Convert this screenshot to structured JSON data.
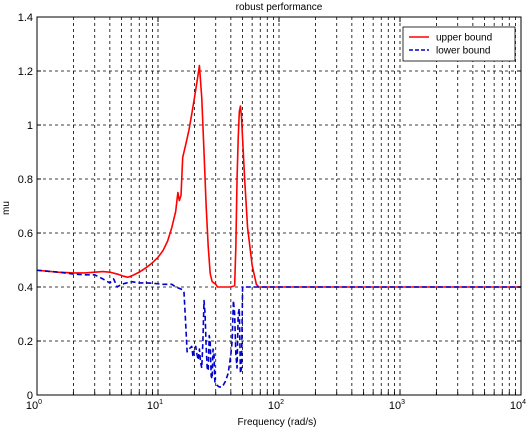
{
  "chart_data": {
    "type": "line",
    "title": "robust performance",
    "xlabel": "Frequency (rad/s)",
    "ylabel": "mu",
    "xscale": "log",
    "xlim": [
      1,
      10000
    ],
    "ylim": [
      0,
      1.4
    ],
    "grid": true,
    "legend_position": "top-right",
    "x_ticks": [
      {
        "base": "10",
        "exp": "0"
      },
      {
        "base": "10",
        "exp": "1"
      },
      {
        "base": "10",
        "exp": "2"
      },
      {
        "base": "10",
        "exp": "3"
      },
      {
        "base": "10",
        "exp": "4"
      }
    ],
    "y_ticks": [
      "0",
      "0.2",
      "0.4",
      "0.6",
      "0.8",
      "1",
      "1.2",
      "1.4"
    ],
    "series": [
      {
        "name": "upper bound",
        "color": "#ff0000",
        "style": "solid",
        "points": [
          [
            1.0,
            0.462
          ],
          [
            1.5,
            0.455
          ],
          [
            2.0,
            0.452
          ],
          [
            2.5,
            0.452
          ],
          [
            3.0,
            0.455
          ],
          [
            3.5,
            0.457
          ],
          [
            4.0,
            0.455
          ],
          [
            4.6,
            0.448
          ],
          [
            5.2,
            0.44
          ],
          [
            5.6,
            0.436
          ],
          [
            6.0,
            0.44
          ],
          [
            7.0,
            0.455
          ],
          [
            8.0,
            0.472
          ],
          [
            9.0,
            0.49
          ],
          [
            10.0,
            0.51
          ],
          [
            11.0,
            0.535
          ],
          [
            12.0,
            0.57
          ],
          [
            13.0,
            0.62
          ],
          [
            14.0,
            0.68
          ],
          [
            14.6,
            0.75
          ],
          [
            15.0,
            0.72
          ],
          [
            15.5,
            0.74
          ],
          [
            16.0,
            0.88
          ],
          [
            17.0,
            0.93
          ],
          [
            18.0,
            0.98
          ],
          [
            19.0,
            1.04
          ],
          [
            20.0,
            1.1
          ],
          [
            21.0,
            1.16
          ],
          [
            22.0,
            1.22
          ],
          [
            23.0,
            1.1
          ],
          [
            24.0,
            0.9
          ],
          [
            25.0,
            0.7
          ],
          [
            26.0,
            0.55
          ],
          [
            27.0,
            0.45
          ],
          [
            28.0,
            0.42
          ],
          [
            29.0,
            0.415
          ],
          [
            30.0,
            0.41
          ],
          [
            31.0,
            0.4
          ],
          [
            40.0,
            0.4
          ],
          [
            43.0,
            0.405
          ],
          [
            44.0,
            0.55
          ],
          [
            45.0,
            0.8
          ],
          [
            46.0,
            0.95
          ],
          [
            47.0,
            1.05
          ],
          [
            48.0,
            1.07
          ],
          [
            49.0,
            1.03
          ],
          [
            50.0,
            0.95
          ],
          [
            52.0,
            0.8
          ],
          [
            55.0,
            0.62
          ],
          [
            60.0,
            0.48
          ],
          [
            65.0,
            0.41
          ],
          [
            68.0,
            0.4
          ],
          [
            100.0,
            0.4
          ],
          [
            1000.0,
            0.4
          ],
          [
            10000.0,
            0.4
          ]
        ]
      },
      {
        "name": "lower bound",
        "color": "#0000cc",
        "style": "dashed",
        "points": [
          [
            1.0,
            0.462
          ],
          [
            1.5,
            0.455
          ],
          [
            2.0,
            0.448
          ],
          [
            2.5,
            0.445
          ],
          [
            3.0,
            0.445
          ],
          [
            3.5,
            0.43
          ],
          [
            4.0,
            0.415
          ],
          [
            4.3,
            0.43
          ],
          [
            4.6,
            0.4
          ],
          [
            5.0,
            0.41
          ],
          [
            5.5,
            0.415
          ],
          [
            6.0,
            0.42
          ],
          [
            7.0,
            0.415
          ],
          [
            8.0,
            0.415
          ],
          [
            9.0,
            0.414
          ],
          [
            10.0,
            0.412
          ],
          [
            11.0,
            0.41
          ],
          [
            12.0,
            0.41
          ],
          [
            13.0,
            0.41
          ],
          [
            14.0,
            0.4
          ],
          [
            15.0,
            0.395
          ],
          [
            16.0,
            0.39
          ],
          [
            16.4,
            0.38
          ],
          [
            17.0,
            0.25
          ],
          [
            17.4,
            0.16
          ],
          [
            18.0,
            0.17
          ],
          [
            19.0,
            0.18
          ],
          [
            19.5,
            0.14
          ],
          [
            20.0,
            0.17
          ],
          [
            20.5,
            0.18
          ],
          [
            21.0,
            0.15
          ],
          [
            21.5,
            0.13
          ],
          [
            22.0,
            0.17
          ],
          [
            22.5,
            0.12
          ],
          [
            23.0,
            0.1
          ],
          [
            23.5,
            0.2
          ],
          [
            24.0,
            0.35
          ],
          [
            24.5,
            0.3
          ],
          [
            25.0,
            0.18
          ],
          [
            25.5,
            0.1
          ],
          [
            26.0,
            0.09
          ],
          [
            26.5,
            0.22
          ],
          [
            27.0,
            0.2
          ],
          [
            27.5,
            0.07
          ],
          [
            28.0,
            0.06
          ],
          [
            28.5,
            0.17
          ],
          [
            29.0,
            0.16
          ],
          [
            29.5,
            0.05
          ],
          [
            30.0,
            0.04
          ],
          [
            32.0,
            0.03
          ],
          [
            34.0,
            0.03
          ],
          [
            36.0,
            0.05
          ],
          [
            38.0,
            0.08
          ],
          [
            40.0,
            0.15
          ],
          [
            41.0,
            0.2
          ],
          [
            42.0,
            0.35
          ],
          [
            43.0,
            0.3
          ],
          [
            44.0,
            0.15
          ],
          [
            45.0,
            0.1
          ],
          [
            46.0,
            0.3
          ],
          [
            47.0,
            0.32
          ],
          [
            48.0,
            0.08
          ],
          [
            49.0,
            0.1
          ],
          [
            50.0,
            0.4
          ],
          [
            52.0,
            0.4
          ],
          [
            100.0,
            0.4
          ],
          [
            1000.0,
            0.4
          ],
          [
            10000.0,
            0.4
          ]
        ]
      }
    ]
  }
}
